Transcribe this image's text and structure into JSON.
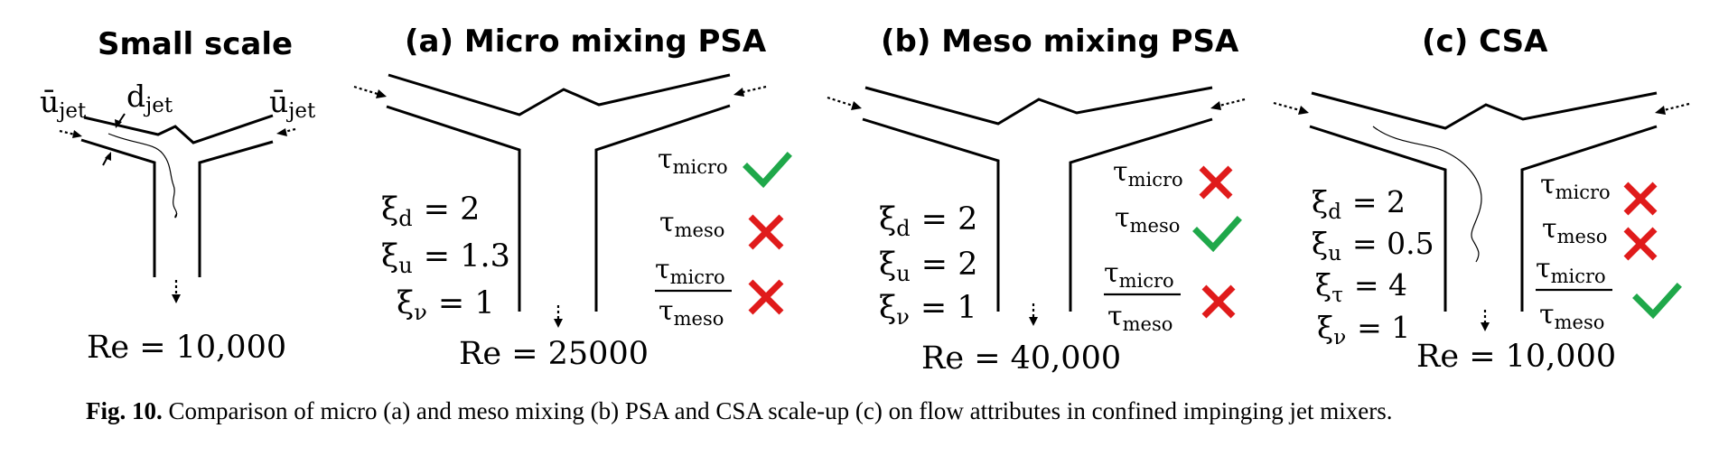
{
  "caption": {
    "label": "Fig. 10.",
    "text": " Comparison of micro (a) and meso mixing (b) PSA and CSA scale-up (c) on flow attributes in confined impinging jet mixers."
  },
  "colors": {
    "check": "#1fa84a",
    "cross": "#e01b1b"
  },
  "small": {
    "title": "Small scale",
    "u_jet_left": "ū",
    "u_jet_right": "ū",
    "jet_sub": "jet",
    "d_jet": "d",
    "re": "Re = 10,000"
  },
  "panel_a": {
    "title": "(a) Micro mixing PSA",
    "params": [
      {
        "sym": "ξ",
        "sub": "d",
        "val": "= 2"
      },
      {
        "sym": "ξ",
        "sub": "u",
        "val": "= 1.3"
      },
      {
        "sym": "ξ",
        "sub": "ν",
        "val": "= 1"
      }
    ],
    "re": "Re = 25000",
    "attrs": [
      {
        "sym": "τ",
        "sub": "micro",
        "status": "check"
      },
      {
        "sym": "τ",
        "sub": "meso",
        "status": "cross"
      },
      {
        "num": "micro",
        "den": "meso",
        "status": "cross"
      }
    ]
  },
  "panel_b": {
    "title": "(b) Meso mixing PSA",
    "params": [
      {
        "sym": "ξ",
        "sub": "d",
        "val": "= 2"
      },
      {
        "sym": "ξ",
        "sub": "u",
        "val": "= 2"
      },
      {
        "sym": "ξ",
        "sub": "ν",
        "val": "= 1"
      }
    ],
    "re": "Re = 40,000",
    "attrs": [
      {
        "sym": "τ",
        "sub": "micro",
        "status": "cross"
      },
      {
        "sym": "τ",
        "sub": "meso",
        "status": "check"
      },
      {
        "num": "micro",
        "den": "meso",
        "status": "cross"
      }
    ]
  },
  "panel_c": {
    "title": "(c) CSA",
    "params": [
      {
        "sym": "ξ",
        "sub": "d",
        "val": "= 2"
      },
      {
        "sym": "ξ",
        "sub": "u",
        "val": "= 0.5"
      },
      {
        "sym": "ξ",
        "sub": "τ",
        "val": "= 4"
      },
      {
        "sym": "ξ",
        "sub": "ν",
        "val": "= 1"
      }
    ],
    "re": "Re = 10,000",
    "attrs": [
      {
        "sym": "τ",
        "sub": "micro",
        "status": "cross"
      },
      {
        "sym": "τ",
        "sub": "meso",
        "status": "cross"
      },
      {
        "num": "micro",
        "den": "meso",
        "status": "check"
      }
    ]
  }
}
